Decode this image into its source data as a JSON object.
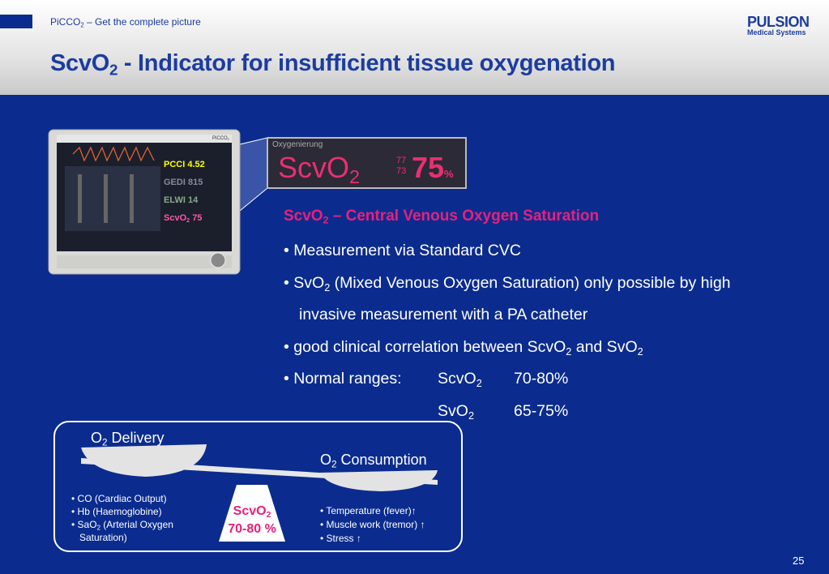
{
  "header": {
    "tagline": [
      "PiCCO",
      "2",
      " – Get the complete picture"
    ],
    "title": [
      "ScvO",
      "2",
      " - Indicator for insufficient tissue oxygenation"
    ],
    "logo": {
      "name": "PULSION",
      "sub": "Medical Systems"
    }
  },
  "monitor": {
    "brand": [
      "PiCCO",
      "2"
    ],
    "params": [
      {
        "name": "PCCI",
        "value": "4.52"
      },
      {
        "name": "GEDI",
        "value": "815"
      },
      {
        "name": "ELWI",
        "value": "14"
      },
      {
        "name": [
          "ScvO",
          "2"
        ],
        "value": "75"
      }
    ]
  },
  "inset": {
    "label": "Oxygenierung",
    "param": [
      "ScvO",
      "2"
    ],
    "small": [
      "77",
      "73"
    ],
    "value": "75",
    "unit": "%"
  },
  "content": {
    "heading": [
      "ScvO",
      "2",
      " – Central Venous Oxygen Saturation"
    ],
    "bullets": [
      [
        "Measurement via Standard CVC"
      ],
      [
        "SvO",
        "2",
        " (Mixed Venous Oxygen Saturation) only possible by high invasive measurement with a PA catheter"
      ],
      [
        "good clinical correlation between ScvO",
        "2",
        " and SvO",
        "2"
      ],
      [
        "Normal ranges:"
      ]
    ],
    "ranges": [
      {
        "name": [
          "ScvO",
          "2"
        ],
        "range": "70-80%"
      },
      {
        "name": [
          "SvO",
          "2"
        ],
        "range": "65-75%"
      }
    ]
  },
  "diagram": {
    "delivery": [
      "O",
      "2",
      " Delivery"
    ],
    "consumption": [
      "O",
      "2",
      " Consumption"
    ],
    "delivery_factors": [
      [
        "CO (Cardiac Output)"
      ],
      [
        "Hb (Haemoglobine)"
      ],
      [
        "SaO",
        "2",
        " (Arterial Oxygen Saturation)"
      ]
    ],
    "consumption_factors": [
      "Temperature (fever)↑",
      "Muscle work (tremor) ↑",
      "Stress ↑"
    ],
    "fulcrum": {
      "name": [
        "ScvO",
        "2"
      ],
      "range": "70-80 %"
    }
  },
  "page_number": "25"
}
